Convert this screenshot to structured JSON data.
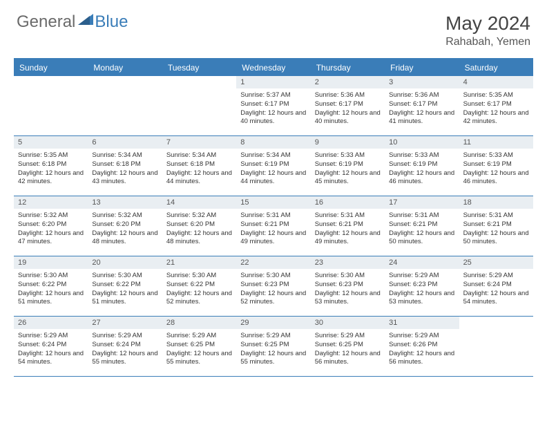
{
  "brand": {
    "general": "General",
    "blue": "Blue"
  },
  "title": "May 2024",
  "location": "Rahabah, Yemen",
  "colors": {
    "accent": "#3a7db8",
    "dayBarBg": "#e9eef2",
    "text": "#333333",
    "logoGray": "#6a6a6a"
  },
  "dow": [
    "Sunday",
    "Monday",
    "Tuesday",
    "Wednesday",
    "Thursday",
    "Friday",
    "Saturday"
  ],
  "weeks": [
    [
      null,
      null,
      null,
      {
        "d": "1",
        "sr": "5:37 AM",
        "ss": "6:17 PM",
        "dl": "12 hours and 40 minutes."
      },
      {
        "d": "2",
        "sr": "5:36 AM",
        "ss": "6:17 PM",
        "dl": "12 hours and 40 minutes."
      },
      {
        "d": "3",
        "sr": "5:36 AM",
        "ss": "6:17 PM",
        "dl": "12 hours and 41 minutes."
      },
      {
        "d": "4",
        "sr": "5:35 AM",
        "ss": "6:17 PM",
        "dl": "12 hours and 42 minutes."
      }
    ],
    [
      {
        "d": "5",
        "sr": "5:35 AM",
        "ss": "6:18 PM",
        "dl": "12 hours and 42 minutes."
      },
      {
        "d": "6",
        "sr": "5:34 AM",
        "ss": "6:18 PM",
        "dl": "12 hours and 43 minutes."
      },
      {
        "d": "7",
        "sr": "5:34 AM",
        "ss": "6:18 PM",
        "dl": "12 hours and 44 minutes."
      },
      {
        "d": "8",
        "sr": "5:34 AM",
        "ss": "6:19 PM",
        "dl": "12 hours and 44 minutes."
      },
      {
        "d": "9",
        "sr": "5:33 AM",
        "ss": "6:19 PM",
        "dl": "12 hours and 45 minutes."
      },
      {
        "d": "10",
        "sr": "5:33 AM",
        "ss": "6:19 PM",
        "dl": "12 hours and 46 minutes."
      },
      {
        "d": "11",
        "sr": "5:33 AM",
        "ss": "6:19 PM",
        "dl": "12 hours and 46 minutes."
      }
    ],
    [
      {
        "d": "12",
        "sr": "5:32 AM",
        "ss": "6:20 PM",
        "dl": "12 hours and 47 minutes."
      },
      {
        "d": "13",
        "sr": "5:32 AM",
        "ss": "6:20 PM",
        "dl": "12 hours and 48 minutes."
      },
      {
        "d": "14",
        "sr": "5:32 AM",
        "ss": "6:20 PM",
        "dl": "12 hours and 48 minutes."
      },
      {
        "d": "15",
        "sr": "5:31 AM",
        "ss": "6:21 PM",
        "dl": "12 hours and 49 minutes."
      },
      {
        "d": "16",
        "sr": "5:31 AM",
        "ss": "6:21 PM",
        "dl": "12 hours and 49 minutes."
      },
      {
        "d": "17",
        "sr": "5:31 AM",
        "ss": "6:21 PM",
        "dl": "12 hours and 50 minutes."
      },
      {
        "d": "18",
        "sr": "5:31 AM",
        "ss": "6:21 PM",
        "dl": "12 hours and 50 minutes."
      }
    ],
    [
      {
        "d": "19",
        "sr": "5:30 AM",
        "ss": "6:22 PM",
        "dl": "12 hours and 51 minutes."
      },
      {
        "d": "20",
        "sr": "5:30 AM",
        "ss": "6:22 PM",
        "dl": "12 hours and 51 minutes."
      },
      {
        "d": "21",
        "sr": "5:30 AM",
        "ss": "6:22 PM",
        "dl": "12 hours and 52 minutes."
      },
      {
        "d": "22",
        "sr": "5:30 AM",
        "ss": "6:23 PM",
        "dl": "12 hours and 52 minutes."
      },
      {
        "d": "23",
        "sr": "5:30 AM",
        "ss": "6:23 PM",
        "dl": "12 hours and 53 minutes."
      },
      {
        "d": "24",
        "sr": "5:29 AM",
        "ss": "6:23 PM",
        "dl": "12 hours and 53 minutes."
      },
      {
        "d": "25",
        "sr": "5:29 AM",
        "ss": "6:24 PM",
        "dl": "12 hours and 54 minutes."
      }
    ],
    [
      {
        "d": "26",
        "sr": "5:29 AM",
        "ss": "6:24 PM",
        "dl": "12 hours and 54 minutes."
      },
      {
        "d": "27",
        "sr": "5:29 AM",
        "ss": "6:24 PM",
        "dl": "12 hours and 55 minutes."
      },
      {
        "d": "28",
        "sr": "5:29 AM",
        "ss": "6:25 PM",
        "dl": "12 hours and 55 minutes."
      },
      {
        "d": "29",
        "sr": "5:29 AM",
        "ss": "6:25 PM",
        "dl": "12 hours and 55 minutes."
      },
      {
        "d": "30",
        "sr": "5:29 AM",
        "ss": "6:25 PM",
        "dl": "12 hours and 56 minutes."
      },
      {
        "d": "31",
        "sr": "5:29 AM",
        "ss": "6:26 PM",
        "dl": "12 hours and 56 minutes."
      },
      null
    ]
  ],
  "labels": {
    "sunrise": "Sunrise:",
    "sunset": "Sunset:",
    "daylight": "Daylight:"
  }
}
